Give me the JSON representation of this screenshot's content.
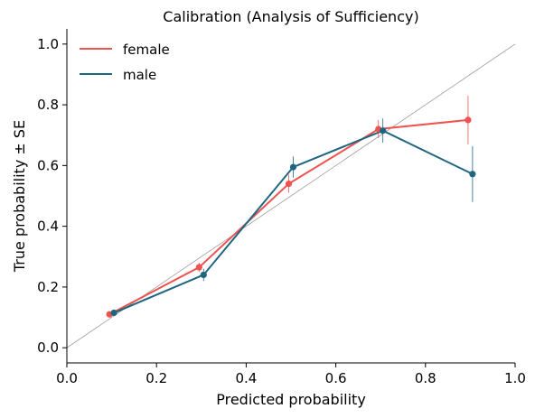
{
  "chart_data": {
    "type": "line",
    "title": "Calibration (Analysis of Sufficiency)",
    "xlabel": "Predicted probability",
    "ylabel": "True probability ± SE",
    "xlim": [
      0.0,
      1.0
    ],
    "ylim": [
      -0.05,
      1.05
    ],
    "xticks": [
      "0.0",
      "0.2",
      "0.4",
      "0.6",
      "0.8",
      "1.0"
    ],
    "yticks": [
      "0.0",
      "0.2",
      "0.4",
      "0.6",
      "0.8",
      "1.0"
    ],
    "grid": false,
    "legend_position": "top-left",
    "reference_line": {
      "from": [
        0,
        0
      ],
      "to": [
        1,
        1
      ],
      "color": "#999999"
    },
    "series": [
      {
        "name": "female",
        "color": "#ef5350",
        "x": [
          0.095,
          0.295,
          0.495,
          0.695,
          0.895
        ],
        "y": [
          0.11,
          0.265,
          0.54,
          0.72,
          0.75
        ],
        "se": [
          0.01,
          0.015,
          0.03,
          0.03,
          0.08
        ]
      },
      {
        "name": "male",
        "color": "#1e6580",
        "x": [
          0.105,
          0.305,
          0.505,
          0.705,
          0.905
        ],
        "y": [
          0.115,
          0.24,
          0.595,
          0.715,
          0.572
        ],
        "se": [
          0.01,
          0.02,
          0.035,
          0.04,
          0.092
        ]
      }
    ]
  }
}
